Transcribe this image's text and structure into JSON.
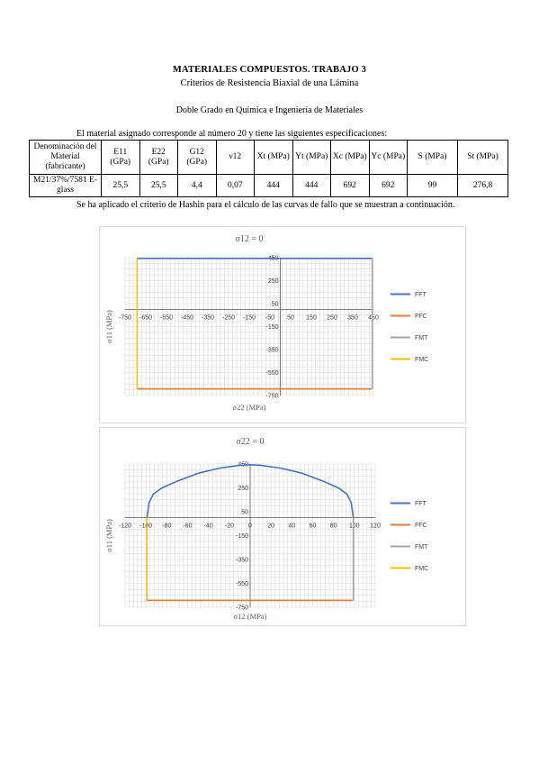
{
  "title": "MATERIALES COMPUESTOS. TRABAJO 3",
  "subtitle": "Criterios de Resistencia Biaxial de una Lámina",
  "degree": "Doble Grado en Química e Ingeniería de Materiales",
  "intro": "El material asignado corresponde al número 20 y tiene las siguientes especificaciones:",
  "table": {
    "headers": [
      "Denominación del Material (fabricante)",
      "E11 (GPa)",
      "E22 (GPa)",
      "G12 (GPa)",
      "ν12",
      "Xt (MPa)",
      "Yt (MPa)",
      "Xc (MPa)",
      "Yc (MPa)",
      "S (MPa)",
      "St (MPa)"
    ],
    "row": [
      "M21/37%/7581 E-glass",
      "25,5",
      "25,5",
      "4,4",
      "0,07",
      "444",
      "444",
      "692",
      "692",
      "99",
      "276,8"
    ]
  },
  "hashin_text": "Se ha aplicado el criterio de Hashin para el cálculo de las curvas de fallo que se muestran a continuación.",
  "legend": [
    "FFT",
    "FFC",
    "FMT",
    "FMC"
  ],
  "colors": {
    "FFT": "#4472c4",
    "FFC": "#ed7d31",
    "FMT": "#a5a5a5",
    "FMC": "#ffc000",
    "grid": "#d9d9d9",
    "axis": "#595959",
    "text": "#404040"
  },
  "chart_data": [
    {
      "type": "line",
      "title": "σ12 = 0",
      "xlabel": "σ22 (MPa)",
      "ylabel": "σ11 (MPa)",
      "xlim": [
        -750,
        450
      ],
      "ylim": [
        -750,
        450
      ],
      "xticks": [
        -750,
        -650,
        -550,
        -450,
        -350,
        -250,
        -150,
        -50,
        50,
        150,
        250,
        350,
        450
      ],
      "xtick_labels": [
        "-750",
        "-650",
        "-550",
        "-450",
        "-350",
        "-250",
        "-150",
        "-50",
        "50",
        "150",
        "250",
        "350",
        "450"
      ],
      "yticks": [
        450,
        250,
        50,
        -150,
        -350,
        -550,
        -750
      ],
      "ytick_labels": [
        "450",
        "250",
        "50",
        "-150",
        "-350",
        "-550",
        "-750"
      ],
      "legend_position": "right",
      "grid": true,
      "series": [
        {
          "name": "FFT",
          "x": [
            -692,
            444
          ],
          "y": [
            444,
            444
          ]
        },
        {
          "name": "FFC",
          "x": [
            -692,
            444
          ],
          "y": [
            -692,
            -692
          ]
        },
        {
          "name": "FMT",
          "x": [
            444,
            444
          ],
          "y": [
            -692,
            444
          ]
        },
        {
          "name": "FMC",
          "x": [
            -692,
            -692
          ],
          "y": [
            -692,
            444
          ]
        }
      ]
    },
    {
      "type": "line",
      "title": "σ22 = 0",
      "xlabel": "σ12 (MPa)",
      "ylabel": "σ11 (MPa)",
      "xlim": [
        -120,
        120
      ],
      "ylim": [
        -750,
        450
      ],
      "xticks": [
        -120,
        -100,
        -80,
        -60,
        -40,
        -20,
        0,
        20,
        40,
        60,
        80,
        100,
        120
      ],
      "xtick_labels": [
        "-120",
        "-100",
        "-80",
        "-60",
        "-40",
        "-20",
        "0",
        "20",
        "40",
        "60",
        "80",
        "100",
        "120"
      ],
      "yticks": [
        450,
        250,
        50,
        -150,
        -350,
        -550,
        -750
      ],
      "ytick_labels": [
        "450",
        "250",
        "50",
        "-150",
        "-350",
        "-550",
        "-750"
      ],
      "legend_position": "right",
      "grid": true,
      "series": [
        {
          "name": "FFT",
          "x": [
            -99,
            -97,
            -93,
            -85,
            -70,
            -50,
            -30,
            -10,
            0,
            10,
            30,
            50,
            70,
            85,
            93,
            97,
            99
          ],
          "y": [
            0,
            125,
            196,
            248,
            306,
            372,
            414,
            439,
            444,
            439,
            414,
            372,
            306,
            248,
            196,
            125,
            0
          ]
        },
        {
          "name": "FFC",
          "x": [
            -99,
            99
          ],
          "y": [
            -692,
            -692
          ]
        },
        {
          "name": "FMT",
          "x": [
            99,
            99
          ],
          "y": [
            -692,
            0
          ]
        },
        {
          "name": "FMC",
          "x": [
            -99,
            -99
          ],
          "y": [
            -692,
            0
          ]
        }
      ]
    }
  ]
}
